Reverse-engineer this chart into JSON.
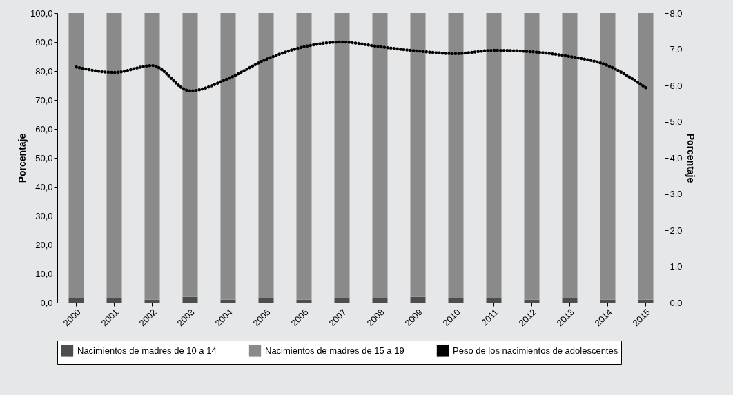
{
  "chart_data": {
    "type": "bar",
    "stacked": true,
    "ylabel": "Porcentaje",
    "y2label": "Porcentaje",
    "legend": "bottom",
    "categories": [
      "2000",
      "2001",
      "2002",
      "2003",
      "2004",
      "2005",
      "2006",
      "2007",
      "2008",
      "2009",
      "2010",
      "2011",
      "2012",
      "2013",
      "2014",
      "2015"
    ],
    "ylim": [
      0,
      100
    ],
    "yticks": [
      {
        "value": 0,
        "label": "0,0"
      },
      {
        "value": 10,
        "label": "10,0"
      },
      {
        "value": 20,
        "label": "20,0"
      },
      {
        "value": 30,
        "label": "30,0"
      },
      {
        "value": 40,
        "label": "40,0"
      },
      {
        "value": 50,
        "label": "50,0"
      },
      {
        "value": 60,
        "label": "60,0"
      },
      {
        "value": 70,
        "label": "70,0"
      },
      {
        "value": 80,
        "label": "80,0"
      },
      {
        "value": 90,
        "label": "90,0"
      },
      {
        "value": 100,
        "label": "100,0"
      }
    ],
    "y2lim": [
      0,
      8
    ],
    "y2ticks": [
      {
        "value": 0,
        "label": "0,0"
      },
      {
        "value": 1,
        "label": "1,0"
      },
      {
        "value": 2,
        "label": "2,0"
      },
      {
        "value": 3,
        "label": "3,0"
      },
      {
        "value": 4,
        "label": "4,0"
      },
      {
        "value": 5,
        "label": "5,0"
      },
      {
        "value": 6,
        "label": "6,0"
      },
      {
        "value": 7,
        "label": "7,0"
      },
      {
        "value": 8,
        "label": "8,0"
      }
    ],
    "series": [
      {
        "name": "Nacimientos de madres de 10 a 14",
        "color": "#4d4d4d",
        "values": [
          1.5,
          1.5,
          1.0,
          2.0,
          1.0,
          1.5,
          1.0,
          1.5,
          1.5,
          2.0,
          1.5,
          1.5,
          1.0,
          1.5,
          1.0,
          1.0
        ]
      },
      {
        "name": "Nacimientos de madres de 15 a 19",
        "color": "#8a8a8a",
        "values": [
          98.5,
          98.5,
          99.0,
          98.0,
          99.0,
          98.5,
          99.0,
          98.5,
          98.5,
          98.0,
          98.5,
          98.5,
          99.0,
          98.5,
          99.0,
          99.0
        ]
      },
      {
        "name": "Peso de los nacimientos de adolescentes",
        "color": "#000000",
        "type": "line",
        "axis": "y2",
        "line_style": "dotted",
        "values": [
          6.51,
          6.36,
          6.55,
          5.85,
          6.19,
          6.72,
          7.07,
          7.2,
          7.07,
          6.95,
          6.88,
          6.97,
          6.93,
          6.8,
          6.55,
          5.94
        ]
      }
    ]
  }
}
